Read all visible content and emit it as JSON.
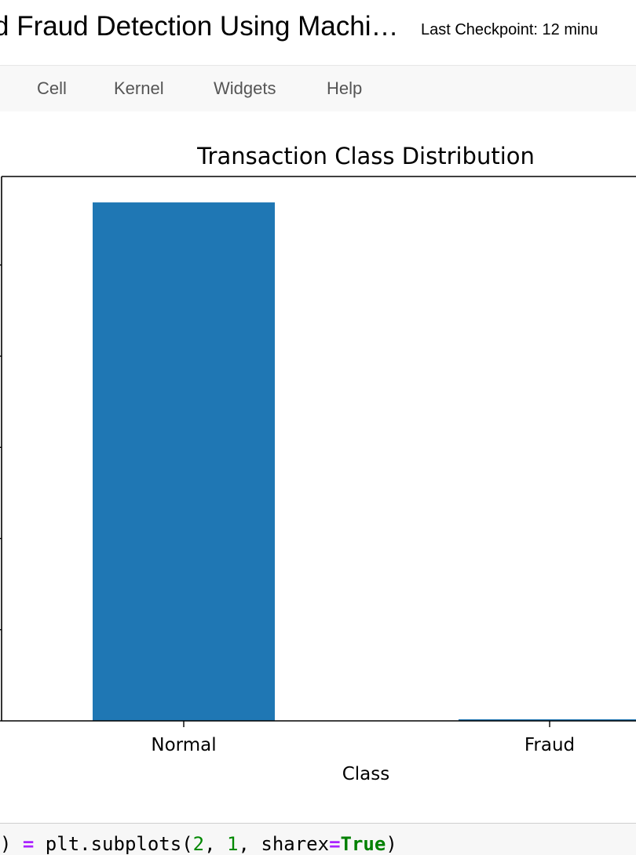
{
  "header": {
    "notebook_title": "d Fraud Detection Using Machi…",
    "checkpoint": "Last Checkpoint: 12 minu"
  },
  "menu": {
    "items": [
      {
        "id": "cell",
        "label": "Cell"
      },
      {
        "id": "kernel",
        "label": "Kernel"
      },
      {
        "id": "widgets",
        "label": "Widgets"
      },
      {
        "id": "help",
        "label": "Help"
      }
    ]
  },
  "chart_data": {
    "type": "bar",
    "title": "Transaction Class Distribution",
    "xlabel": "Class",
    "ylabel": "",
    "categories": [
      "Normal",
      "Fraud"
    ],
    "values": [
      284315,
      492
    ],
    "ylim": [
      0,
      298531
    ],
    "bar_color": "#1f77b4",
    "grid": false,
    "legend": "none"
  },
  "code": {
    "tokens": [
      {
        "text": ") ",
        "cls": ""
      },
      {
        "text": "=",
        "cls": "tok-op"
      },
      {
        "text": " plt.subplots(",
        "cls": ""
      },
      {
        "text": "2",
        "cls": "tok-num"
      },
      {
        "text": ", ",
        "cls": ""
      },
      {
        "text": "1",
        "cls": "tok-num"
      },
      {
        "text": ", sharex",
        "cls": ""
      },
      {
        "text": "=",
        "cls": "tok-op"
      },
      {
        "text": "True",
        "cls": "tok-kw"
      },
      {
        "text": ")",
        "cls": ""
      }
    ]
  }
}
